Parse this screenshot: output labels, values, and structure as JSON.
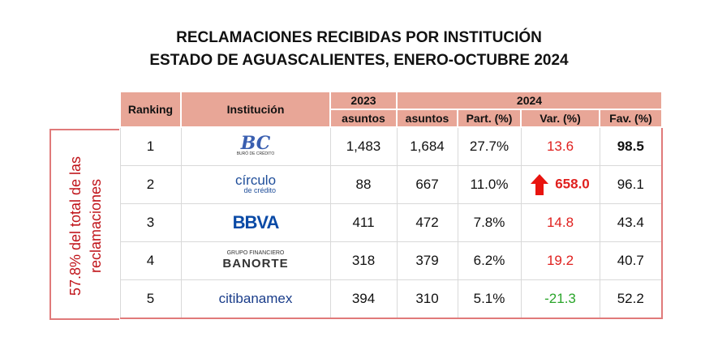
{
  "header": {
    "title": [
      "RECLAMACIONES RECIBIDAS POR INSTITUCIÓN",
      "ESTADO DE AGUASCALIENTES, ENERO-OCTUBRE 2024"
    ]
  },
  "side_note": [
    "57.8% del total de las",
    "reclamaciones"
  ],
  "table": {
    "columns": {
      "ranking": "Ranking",
      "institution": "Institución",
      "year_a": "2023",
      "year_b": "2024",
      "sub": [
        "asuntos",
        "asuntos",
        "Part. (%)",
        "Var. (%)",
        "Fav. (%)"
      ]
    },
    "rows": [
      [
        "1",
        [
          "BC",
          "BURÓ DE CRÉDITO"
        ],
        "1,483",
        "1,684",
        "27.7%",
        "13.6",
        "98.5"
      ],
      [
        "2",
        [
          "círculo",
          "de crédito"
        ],
        "88",
        "667",
        "11.0%",
        "658.0",
        "96.1"
      ],
      [
        "3",
        [
          "BBVA"
        ],
        "411",
        "472",
        "7.8%",
        "14.8",
        "43.4"
      ],
      [
        "4",
        [
          "GRUPO FINANCIERO",
          "BANORTE"
        ],
        "318",
        "379",
        "6.2%",
        "19.2",
        "40.7"
      ],
      [
        "5",
        [
          "citibanamex"
        ],
        "394",
        "310",
        "5.1%",
        "-21.3",
        "52.2"
      ]
    ]
  }
}
